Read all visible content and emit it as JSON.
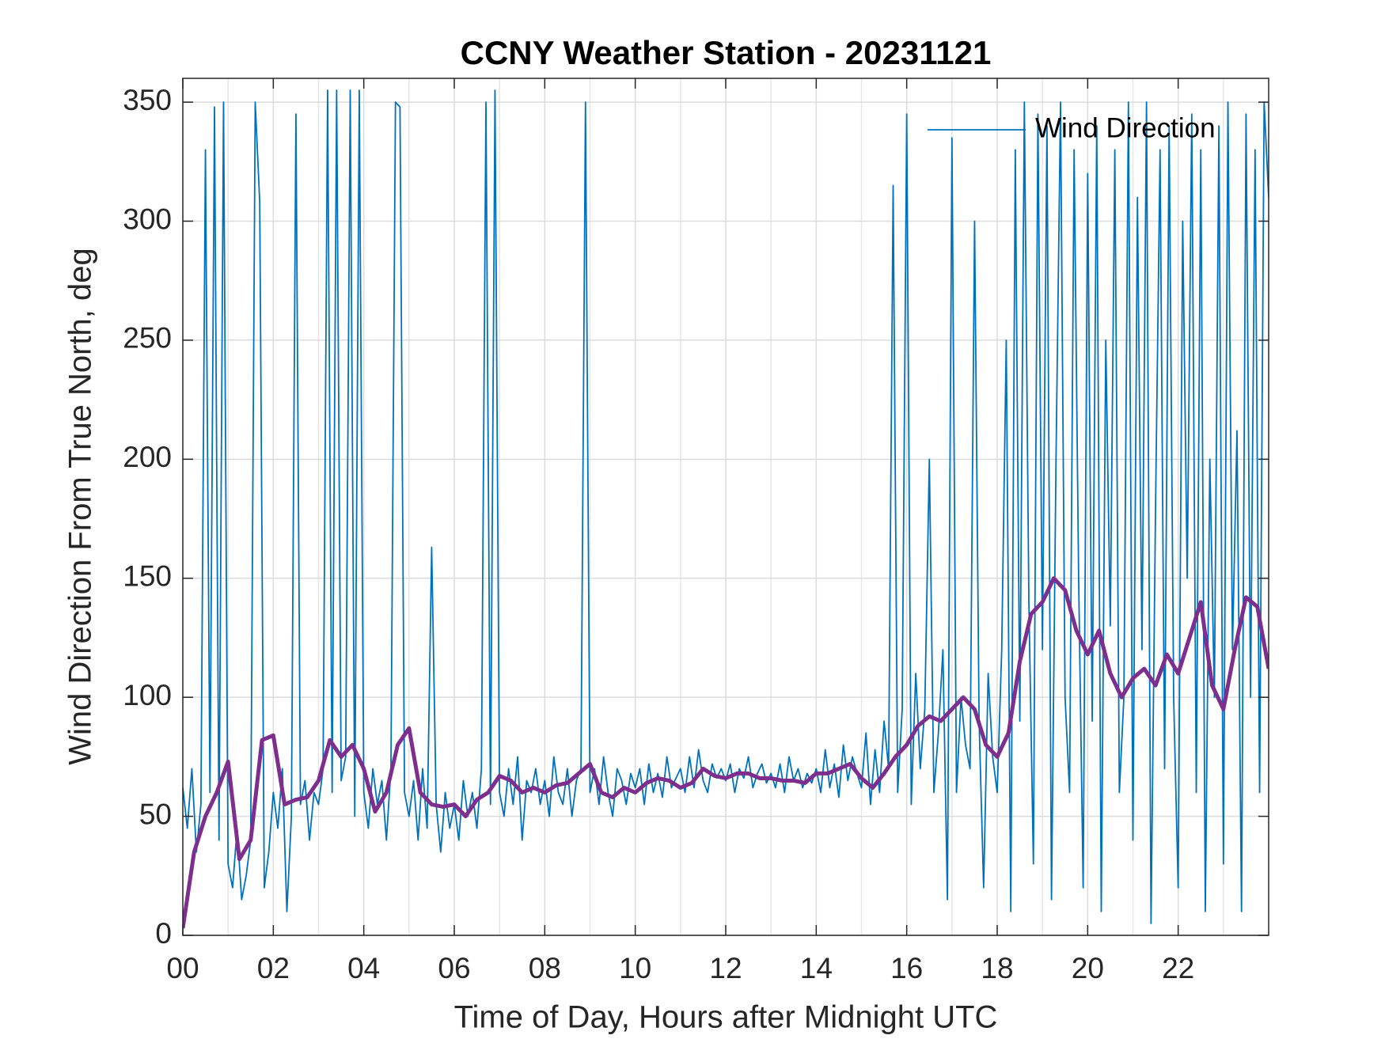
{
  "chart_data": {
    "type": "line",
    "title": "CCNY Weather Station - 20231121",
    "xlabel": "Time of Day, Hours after Midnight UTC",
    "ylabel": "Wind Direction From True North, deg",
    "xlim": [
      0,
      24
    ],
    "ylim": [
      0,
      360
    ],
    "xticks": [
      {
        "value": 0,
        "label": "00"
      },
      {
        "value": 2,
        "label": "02"
      },
      {
        "value": 4,
        "label": "04"
      },
      {
        "value": 6,
        "label": "06"
      },
      {
        "value": 8,
        "label": "08"
      },
      {
        "value": 10,
        "label": "10"
      },
      {
        "value": 12,
        "label": "12"
      },
      {
        "value": 14,
        "label": "14"
      },
      {
        "value": 16,
        "label": "16"
      },
      {
        "value": 18,
        "label": "18"
      },
      {
        "value": 20,
        "label": "20"
      },
      {
        "value": 22,
        "label": "22"
      }
    ],
    "xminorticks": [
      1,
      3,
      5,
      7,
      9,
      11,
      13,
      15,
      17,
      19,
      21,
      23
    ],
    "yticks": [
      0,
      50,
      100,
      150,
      200,
      250,
      300,
      350
    ],
    "grid": true,
    "legend": "upper right",
    "series": [
      {
        "name": "Wind Direction",
        "color": "#0072bd",
        "x": [
          0,
          0.1,
          0.2,
          0.3,
          0.4,
          0.5,
          0.6,
          0.7,
          0.8,
          0.9,
          1,
          1.1,
          1.2,
          1.3,
          1.4,
          1.5,
          1.6,
          1.7,
          1.8,
          1.9,
          2,
          2.1,
          2.2,
          2.3,
          2.4,
          2.5,
          2.6,
          2.7,
          2.8,
          2.9,
          3,
          3.1,
          3.2,
          3.3,
          3.4,
          3.5,
          3.6,
          3.7,
          3.8,
          3.9,
          4,
          4.1,
          4.2,
          4.3,
          4.4,
          4.5,
          4.6,
          4.7,
          4.8,
          4.9,
          5,
          5.1,
          5.2,
          5.3,
          5.4,
          5.5,
          5.6,
          5.7,
          5.8,
          5.9,
          6,
          6.1,
          6.2,
          6.3,
          6.4,
          6.5,
          6.6,
          6.7,
          6.8,
          6.9,
          7,
          7.1,
          7.2,
          7.3,
          7.4,
          7.5,
          7.6,
          7.7,
          7.8,
          7.9,
          8,
          8.1,
          8.2,
          8.3,
          8.4,
          8.5,
          8.6,
          8.7,
          8.8,
          8.9,
          9,
          9.1,
          9.2,
          9.3,
          9.4,
          9.5,
          9.6,
          9.7,
          9.8,
          9.9,
          10,
          10.1,
          10.2,
          10.3,
          10.4,
          10.5,
          10.6,
          10.7,
          10.8,
          10.9,
          11,
          11.1,
          11.2,
          11.3,
          11.4,
          11.5,
          11.6,
          11.7,
          11.8,
          11.9,
          12,
          12.1,
          12.2,
          12.3,
          12.4,
          12.5,
          12.6,
          12.7,
          12.8,
          12.9,
          13,
          13.1,
          13.2,
          13.3,
          13.4,
          13.5,
          13.6,
          13.7,
          13.8,
          13.9,
          14,
          14.1,
          14.2,
          14.3,
          14.4,
          14.5,
          14.6,
          14.7,
          14.8,
          14.9,
          15,
          15.1,
          15.2,
          15.3,
          15.4,
          15.5,
          15.6,
          15.7,
          15.8,
          15.9,
          16,
          16.1,
          16.2,
          16.3,
          16.4,
          16.5,
          16.6,
          16.7,
          16.8,
          16.9,
          17,
          17.1,
          17.2,
          17.3,
          17.4,
          17.5,
          17.6,
          17.7,
          17.8,
          17.9,
          18,
          18.1,
          18.2,
          18.3,
          18.4,
          18.5,
          18.6,
          18.7,
          18.8,
          18.9,
          19,
          19.1,
          19.2,
          19.3,
          19.4,
          19.5,
          19.6,
          19.7,
          19.8,
          19.9,
          20,
          20.1,
          20.2,
          20.3,
          20.4,
          20.5,
          20.6,
          20.7,
          20.8,
          20.9,
          21,
          21.1,
          21.2,
          21.3,
          21.4,
          21.5,
          21.6,
          21.7,
          21.8,
          21.9,
          22,
          22.1,
          22.2,
          22.3,
          22.4,
          22.5,
          22.6,
          22.7,
          22.8,
          22.9,
          23,
          23.1,
          23.2,
          23.3,
          23.4,
          23.5,
          23.6,
          23.7,
          23.8,
          23.9,
          24
        ],
        "values": [
          62,
          45,
          70,
          35,
          55,
          330,
          60,
          348,
          40,
          350,
          30,
          20,
          45,
          15,
          25,
          40,
          350,
          308,
          20,
          35,
          60,
          45,
          70,
          10,
          50,
          345,
          55,
          65,
          40,
          60,
          55,
          70,
          355,
          60,
          355,
          65,
          75,
          355,
          50,
          355,
          60,
          45,
          70,
          55,
          65,
          40,
          70,
          350,
          348,
          60,
          50,
          65,
          40,
          70,
          45,
          163,
          55,
          35,
          60,
          45,
          55,
          40,
          65,
          50,
          60,
          45,
          70,
          350,
          55,
          355,
          60,
          50,
          70,
          55,
          75,
          40,
          65,
          60,
          70,
          55,
          65,
          50,
          75,
          60,
          55,
          70,
          50,
          65,
          70,
          350,
          60,
          70,
          55,
          75,
          60,
          50,
          70,
          65,
          55,
          68,
          62,
          70,
          55,
          72,
          60,
          68,
          58,
          75,
          62,
          66,
          70,
          60,
          75,
          62,
          78,
          65,
          60,
          72,
          66,
          70,
          65,
          72,
          60,
          70,
          66,
          75,
          62,
          68,
          72,
          64,
          68,
          62,
          72,
          60,
          75,
          65,
          70,
          62,
          68,
          64,
          70,
          60,
          78,
          62,
          72,
          58,
          80,
          65,
          75,
          68,
          62,
          85,
          55,
          78,
          60,
          90,
          70,
          315,
          60,
          95,
          345,
          55,
          110,
          70,
          95,
          200,
          60,
          85,
          120,
          15,
          335,
          60,
          100,
          80,
          70,
          300,
          90,
          20,
          110,
          75,
          60,
          120,
          250,
          10,
          330,
          90,
          350,
          140,
          30,
          345,
          120,
          340,
          15,
          200,
          350,
          100,
          60,
          330,
          150,
          20,
          320,
          90,
          340,
          10,
          250,
          130,
          330,
          60,
          100,
          350,
          40,
          310,
          120,
          350,
          5,
          180,
          330,
          70,
          340,
          100,
          20,
          300,
          150,
          345,
          60,
          330,
          10,
          200,
          100,
          340,
          30,
          350,
          120,
          212,
          10,
          345,
          100,
          330,
          60,
          350,
          310
        ]
      },
      {
        "color": "#7e2f8e",
        "x": [
          0,
          0.25,
          0.5,
          0.75,
          1,
          1.25,
          1.5,
          1.75,
          2,
          2.25,
          2.5,
          2.75,
          3,
          3.25,
          3.5,
          3.75,
          4,
          4.25,
          4.5,
          4.75,
          5,
          5.25,
          5.5,
          5.75,
          6,
          6.25,
          6.5,
          6.75,
          7,
          7.25,
          7.5,
          7.75,
          8,
          8.25,
          8.5,
          8.75,
          9,
          9.25,
          9.5,
          9.75,
          10,
          10.25,
          10.5,
          10.75,
          11,
          11.25,
          11.5,
          11.75,
          12,
          12.25,
          12.5,
          12.75,
          13,
          13.25,
          13.5,
          13.75,
          14,
          14.25,
          14.5,
          14.75,
          15,
          15.25,
          15.5,
          15.75,
          16,
          16.25,
          16.5,
          16.75,
          17,
          17.25,
          17.5,
          17.75,
          18,
          18.25,
          18.5,
          18.75,
          19,
          19.25,
          19.5,
          19.75,
          20,
          20.25,
          20.5,
          20.75,
          21,
          21.25,
          21.5,
          21.75,
          22,
          22.25,
          22.5,
          22.75,
          23,
          23.25,
          23.5,
          23.75,
          24
        ],
        "values": [
          3,
          35,
          50,
          60,
          73,
          32,
          40,
          82,
          84,
          55,
          57,
          58,
          65,
          82,
          75,
          80,
          70,
          52,
          60,
          80,
          87,
          60,
          55,
          54,
          55,
          50,
          57,
          60,
          67,
          65,
          60,
          62,
          60,
          63,
          64,
          68,
          72,
          60,
          58,
          62,
          60,
          64,
          66,
          65,
          62,
          64,
          70,
          67,
          66,
          68,
          68,
          66,
          66,
          65,
          65,
          64,
          68,
          68,
          70,
          72,
          66,
          62,
          68,
          75,
          80,
          88,
          92,
          90,
          95,
          100,
          95,
          80,
          75,
          85,
          115,
          135,
          140,
          150,
          145,
          128,
          118,
          128,
          110,
          100,
          108,
          112,
          105,
          118,
          110,
          125,
          140,
          105,
          95,
          120,
          142,
          138,
          112
        ]
      }
    ]
  }
}
